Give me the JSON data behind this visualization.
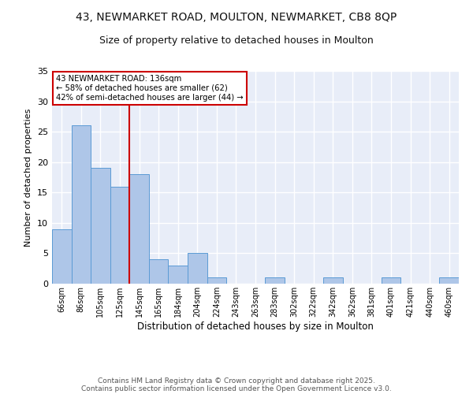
{
  "title1": "43, NEWMARKET ROAD, MOULTON, NEWMARKET, CB8 8QP",
  "title2": "Size of property relative to detached houses in Moulton",
  "xlabel": "Distribution of detached houses by size in Moulton",
  "ylabel": "Number of detached properties",
  "categories": [
    "66sqm",
    "86sqm",
    "105sqm",
    "125sqm",
    "145sqm",
    "165sqm",
    "184sqm",
    "204sqm",
    "224sqm",
    "243sqm",
    "263sqm",
    "283sqm",
    "302sqm",
    "322sqm",
    "342sqm",
    "362sqm",
    "381sqm",
    "401sqm",
    "421sqm",
    "440sqm",
    "460sqm"
  ],
  "values": [
    9,
    26,
    19,
    16,
    18,
    4,
    3,
    5,
    1,
    0,
    0,
    1,
    0,
    0,
    1,
    0,
    0,
    1,
    0,
    0,
    1
  ],
  "bar_color": "#aec6e8",
  "bar_edge_color": "#5b9bd5",
  "vline_color": "#cc0000",
  "annotation_text": "43 NEWMARKET ROAD: 136sqm\n← 58% of detached houses are smaller (62)\n42% of semi-detached houses are larger (44) →",
  "annotation_box_color": "#cc0000",
  "ylim": [
    0,
    35
  ],
  "yticks": [
    0,
    5,
    10,
    15,
    20,
    25,
    30,
    35
  ],
  "footer1": "Contains HM Land Registry data © Crown copyright and database right 2025.",
  "footer2": "Contains public sector information licensed under the Open Government Licence v3.0.",
  "bg_color": "#e8edf8",
  "grid_color": "#ffffff",
  "title_fontsize": 10,
  "subtitle_fontsize": 9
}
